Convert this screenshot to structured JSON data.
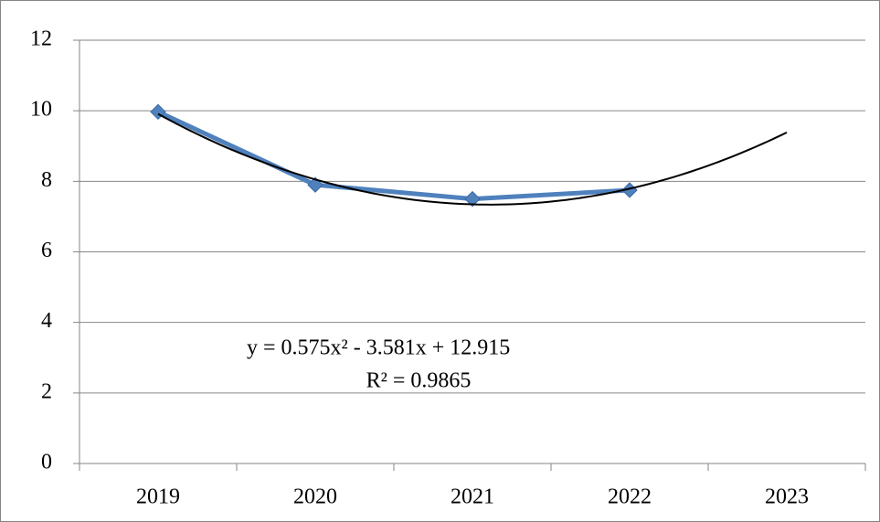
{
  "chart_data": {
    "type": "line",
    "categories": [
      "2019",
      "2020",
      "2021",
      "2022",
      "2023"
    ],
    "series": [
      {
        "color": "#4f81bd",
        "values": [
          9.97,
          7.9,
          7.5,
          7.75,
          null
        ]
      }
    ],
    "ylim": [
      0,
      12
    ],
    "yticks": [
      0,
      2,
      4,
      6,
      8,
      10,
      12
    ],
    "grid": true,
    "trendline": {
      "type": "polynomial",
      "coefficients": [
        0.575,
        -3.581,
        12.915
      ],
      "color": "#000000",
      "equation": "y = 0.575x² - 3.581x + 12.915",
      "r_squared": "R² = 0.9865"
    }
  }
}
